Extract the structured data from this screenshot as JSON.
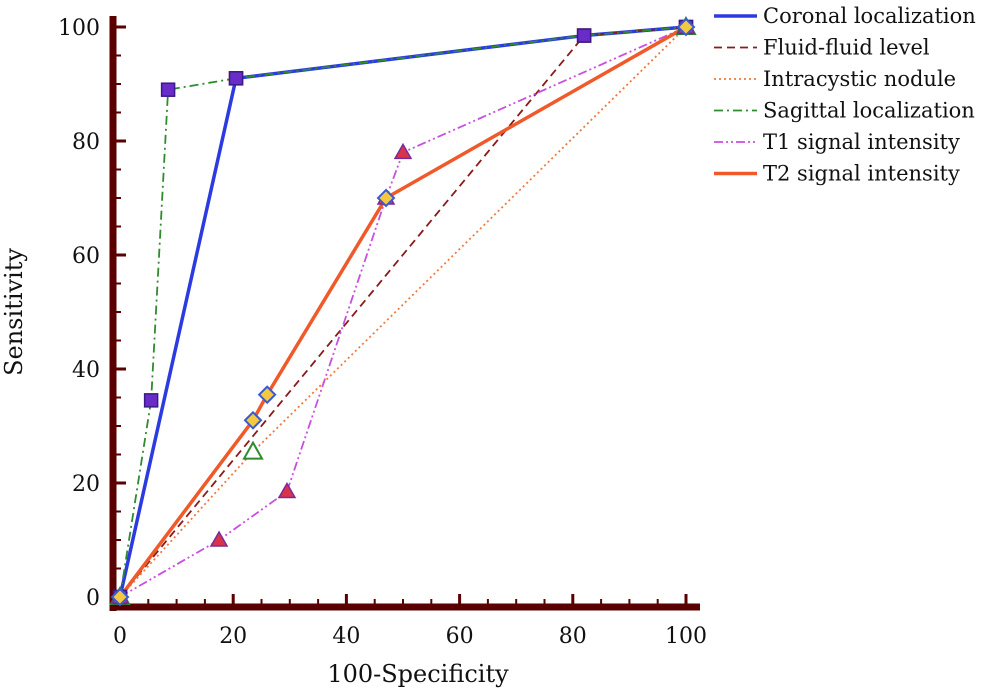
{
  "chart_data": {
    "type": "line",
    "title": "",
    "xlabel": "100-Specificity",
    "ylabel": "Sensitivity",
    "xlim": [
      0,
      100
    ],
    "ylim": [
      0,
      100
    ],
    "xticks": [
      "0",
      "20",
      "40",
      "60",
      "80",
      "100"
    ],
    "yticks": [
      "0",
      "20",
      "40",
      "60",
      "80",
      "100"
    ],
    "grid": false,
    "legend": "top-right",
    "axis_color": "#5a0000",
    "series": [
      {
        "name": "Coronal localization",
        "color": "#2b3be0",
        "dash": "solid",
        "marker": "square",
        "marker_fill": "#c8553d",
        "marker_stroke": "#7a1f1f",
        "points": [
          [
            0,
            0
          ],
          [
            20.5,
            91
          ],
          [
            82,
            98.5
          ],
          [
            100,
            100
          ]
        ]
      },
      {
        "name": "Fluid-fluid level",
        "color": "#8b1a1a",
        "dash": "dashed",
        "marker": "circle",
        "marker_fill": "#f5c842",
        "marker_stroke": "#b08a1a",
        "points": [
          [
            0,
            0
          ],
          [
            82,
            98.5
          ],
          [
            100,
            100
          ]
        ]
      },
      {
        "name": "Intracystic nodule",
        "color": "#f07a3a",
        "dash": "dotted",
        "marker": "triangle-open",
        "marker_fill": "#ffffff",
        "marker_stroke": "#2e8b2e",
        "points": [
          [
            0,
            0
          ],
          [
            23.5,
            25.5
          ],
          [
            100,
            100
          ]
        ]
      },
      {
        "name": "Sagittal localization",
        "color": "#2e8b2e",
        "dash": "dashdot",
        "marker": "square",
        "marker_fill": "#6a2cc9",
        "marker_stroke": "#3a1a8a",
        "points": [
          [
            0,
            0
          ],
          [
            5.5,
            34.5
          ],
          [
            8.5,
            89
          ],
          [
            20.5,
            91
          ],
          [
            82,
            98.5
          ],
          [
            100,
            100
          ]
        ]
      },
      {
        "name": "T1 signal intensity",
        "color": "#c94fe0",
        "dash": "dashdotdot",
        "marker": "triangle",
        "marker_fill": "#d9334a",
        "marker_stroke": "#7a2a9a",
        "points": [
          [
            0,
            0
          ],
          [
            17.5,
            10
          ],
          [
            29.5,
            18.5
          ],
          [
            47,
            70
          ],
          [
            50,
            78
          ],
          [
            100,
            100
          ]
        ]
      },
      {
        "name": "T2 signal intensity",
        "color": "#f05a2a",
        "dash": "solid",
        "marker": "diamond",
        "marker_fill": "#f5c842",
        "marker_stroke": "#3a5ad0",
        "points": [
          [
            0,
            0
          ],
          [
            23.5,
            31
          ],
          [
            26,
            35.5
          ],
          [
            47,
            70
          ],
          [
            100,
            100
          ]
        ]
      }
    ]
  }
}
